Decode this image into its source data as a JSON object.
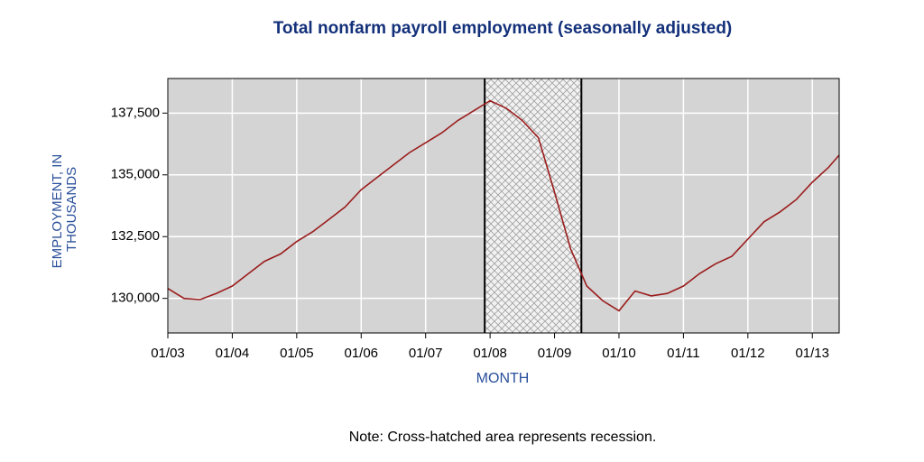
{
  "chart_data": {
    "type": "line",
    "title": "Total nonfarm payroll employment (seasonally adjusted)",
    "x_label": "MONTH",
    "y_label": [
      "EMPLOYMENT, IN",
      "THOUSANDS"
    ],
    "note": "Note: Cross-hatched area represents recession.",
    "x": [
      "01/03",
      "04/03",
      "07/03",
      "10/03",
      "01/04",
      "04/04",
      "07/04",
      "10/04",
      "01/05",
      "04/05",
      "07/05",
      "10/05",
      "01/06",
      "04/06",
      "07/06",
      "10/06",
      "01/07",
      "04/07",
      "07/07",
      "10/07",
      "01/08",
      "04/08",
      "07/08",
      "10/08",
      "01/09",
      "04/09",
      "07/09",
      "10/09",
      "01/10",
      "04/10",
      "07/10",
      "10/10",
      "01/11",
      "04/11",
      "07/11",
      "10/11",
      "01/12",
      "04/12",
      "07/12",
      "10/12",
      "01/13",
      "04/13",
      "06/13"
    ],
    "values": [
      130400,
      130000,
      129950,
      130200,
      130500,
      131000,
      131500,
      131800,
      132300,
      132700,
      133200,
      133700,
      134400,
      134900,
      135400,
      135900,
      136300,
      136700,
      137200,
      137600,
      138000,
      137700,
      137200,
      136500,
      134300,
      132000,
      130500,
      129900,
      129500,
      130300,
      130100,
      130200,
      130500,
      131000,
      131400,
      131700,
      132400,
      133100,
      133500,
      134000,
      134700,
      135300,
      135800
    ],
    "color": "#9b1c1c",
    "recession": [
      "12/07",
      "06/09"
    ],
    "xlim": [
      "01/03",
      "06/13"
    ],
    "xticks": [
      "01/03",
      "01/04",
      "01/05",
      "01/06",
      "01/07",
      "01/08",
      "01/09",
      "01/10",
      "01/11",
      "01/12",
      "01/13"
    ],
    "ylim": [
      128600,
      138900
    ],
    "yticks": [
      {
        "value": 130000,
        "label": "130,000"
      },
      {
        "value": 132500,
        "label": "132,500"
      },
      {
        "value": 135000,
        "label": "135,000"
      },
      {
        "value": 137500,
        "label": "137,500"
      }
    ],
    "grid": true
  }
}
